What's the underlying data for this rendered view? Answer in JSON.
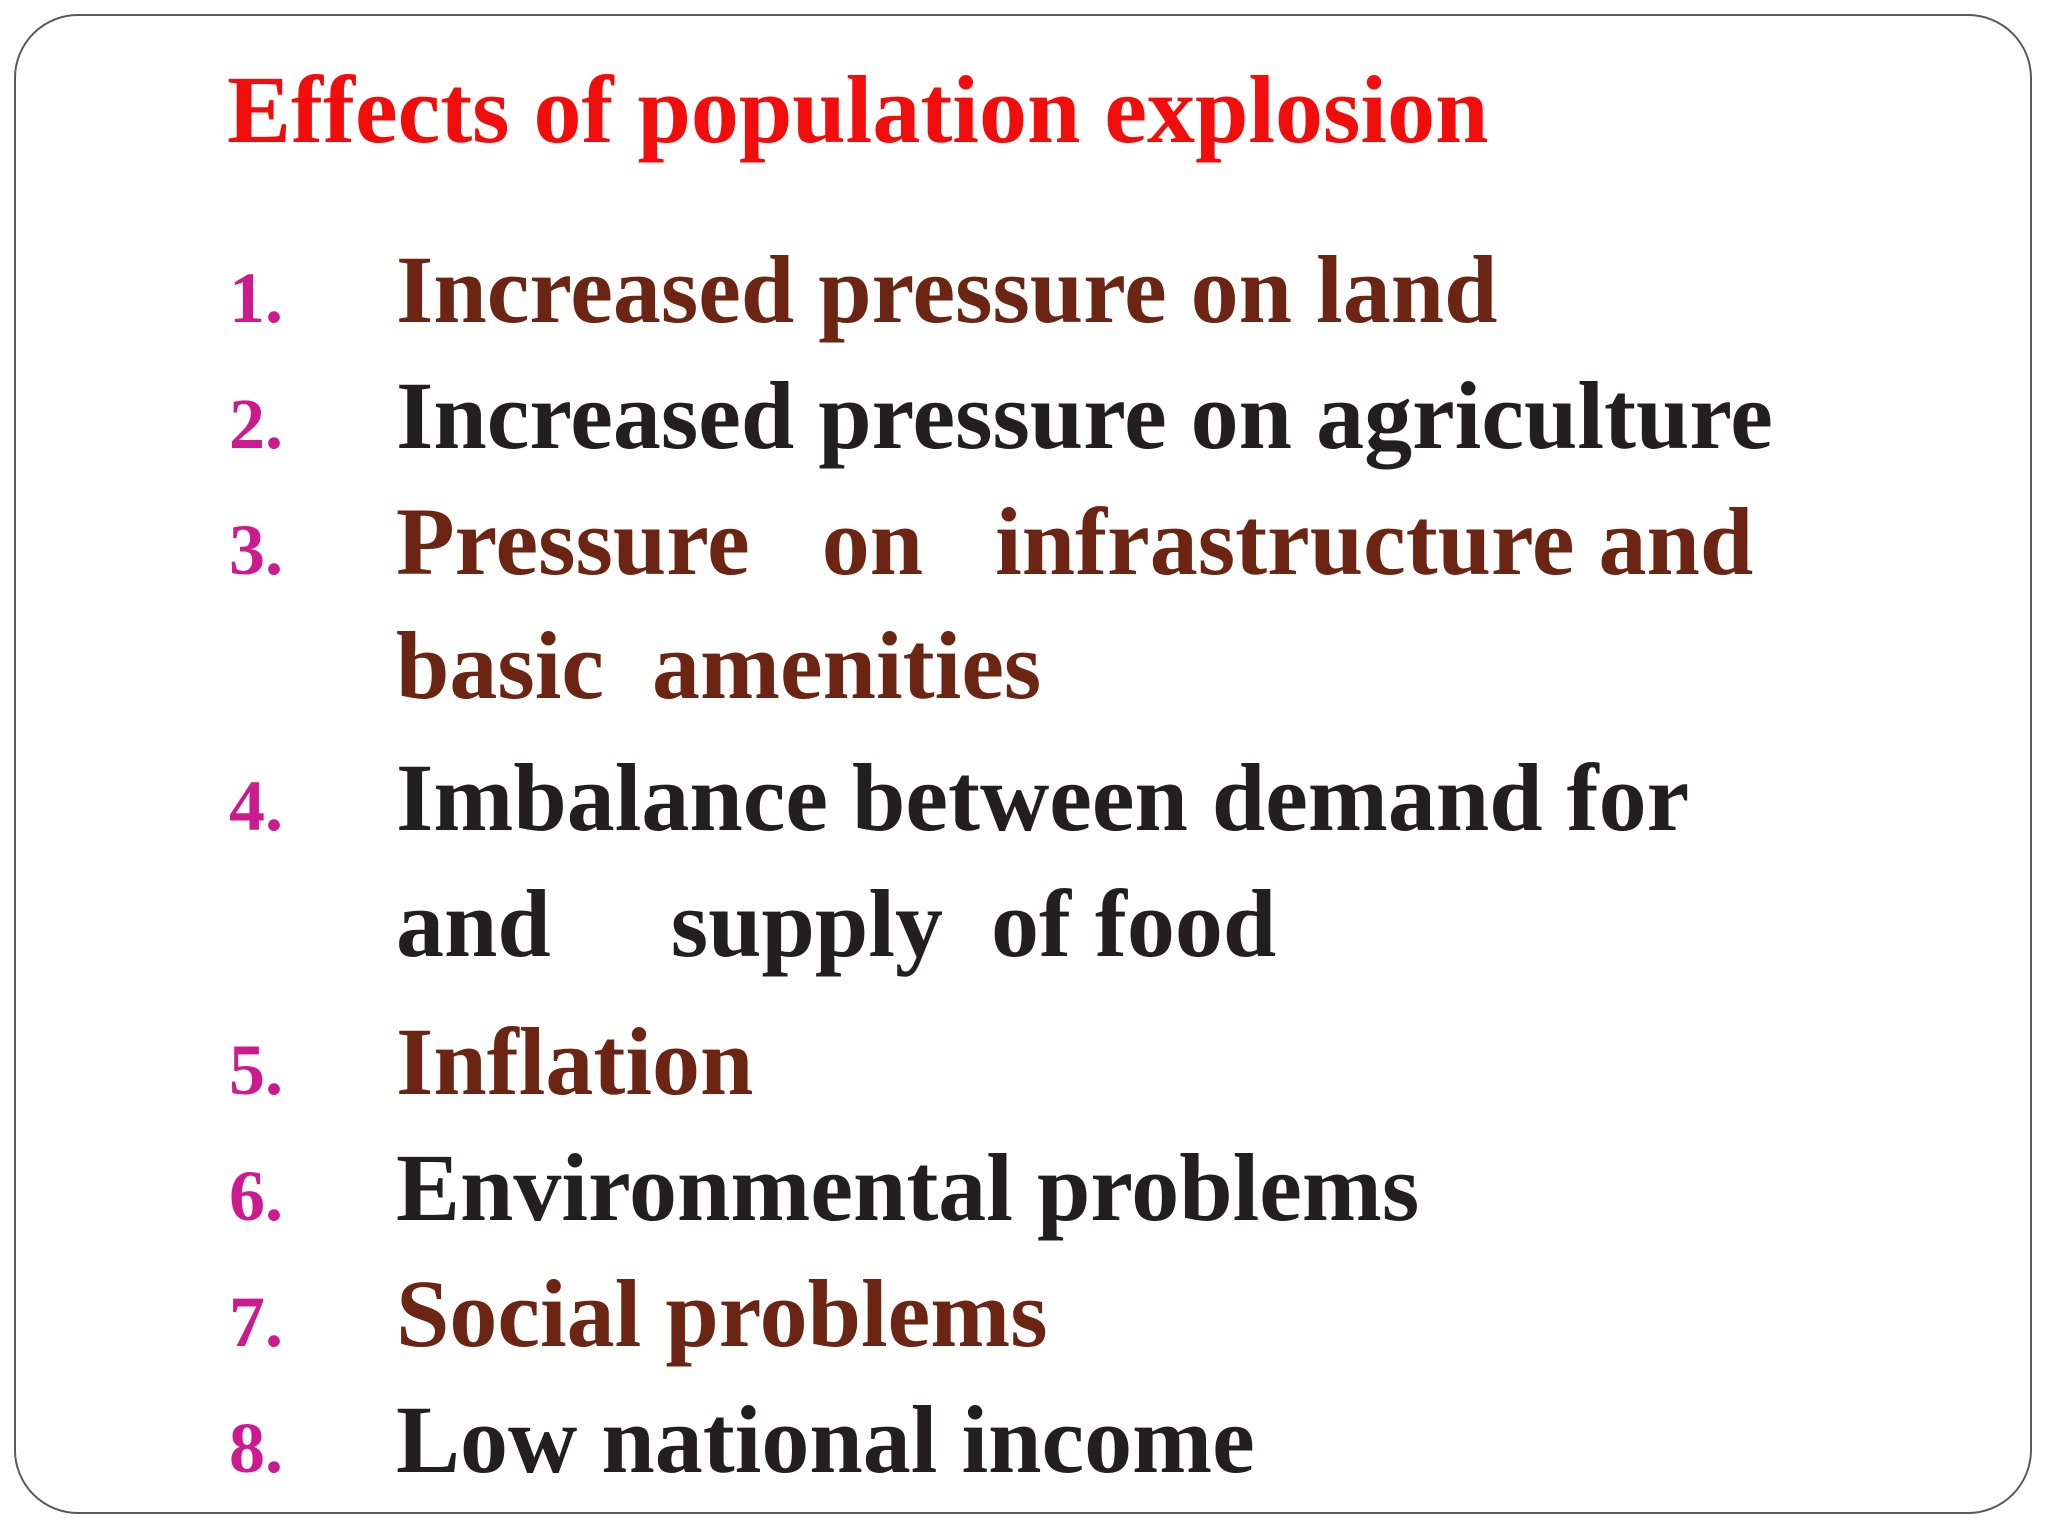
{
  "title": "Effects of population explosion",
  "colors": {
    "title": "#f20d0d",
    "number": "#cc1a8f",
    "brown": "#6b2512",
    "dark": "#231f20"
  },
  "items": [
    {
      "number": "1.",
      "color": "brown",
      "lines": [
        "Increased pressure on land"
      ]
    },
    {
      "number": "2.",
      "color": "dark",
      "lines": [
        "Increased pressure on agriculture"
      ]
    },
    {
      "number": "3.",
      "color": "brown",
      "lines": [
        "Pressure   on   infrastructure and",
        "basic  amenities"
      ]
    },
    {
      "number": "4.",
      "color": "dark",
      "lines": [
        "Imbalance between demand for",
        "and     supply  of food"
      ]
    },
    {
      "number": "5.",
      "color": "brown",
      "lines": [
        "Inflation"
      ]
    },
    {
      "number": "6.",
      "color": "dark",
      "lines": [
        "Environmental problems"
      ]
    },
    {
      "number": "7.",
      "color": "brown",
      "lines": [
        "Social problems"
      ]
    },
    {
      "number": "8.",
      "color": "dark",
      "lines": [
        "Low national income"
      ]
    }
  ]
}
